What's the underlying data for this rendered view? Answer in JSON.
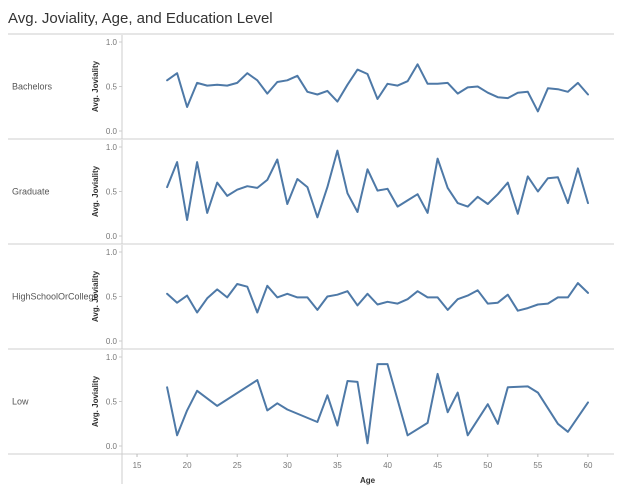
{
  "chart_data": {
    "type": "line",
    "title": "Avg. Joviality, Age, and Education Level",
    "xlabel": "Age",
    "ylabel": "Avg. Joviality",
    "xlim": [
      14,
      62
    ],
    "ylim": [
      0.0,
      1.0
    ],
    "x_ticks": [
      "15",
      "20",
      "25",
      "30",
      "35",
      "40",
      "45",
      "50",
      "55",
      "60"
    ],
    "y_ticks": [
      "0.0",
      "0.5",
      "1.0"
    ],
    "color": "#4e79a7",
    "rows": [
      {
        "name": "Bachelors",
        "x": [
          18,
          19,
          20,
          21,
          22,
          23,
          24,
          25,
          26,
          27,
          28,
          29,
          30,
          31,
          32,
          33,
          34,
          35,
          36,
          37,
          38,
          39,
          40,
          41,
          42,
          43,
          44,
          45,
          46,
          47,
          48,
          49,
          50,
          51,
          52,
          53,
          54,
          55,
          56,
          57,
          58,
          59,
          60
        ],
        "y": [
          0.57,
          0.65,
          0.27,
          0.54,
          0.51,
          0.52,
          0.51,
          0.54,
          0.65,
          0.57,
          0.42,
          0.55,
          0.57,
          0.62,
          0.44,
          0.41,
          0.45,
          0.33,
          0.52,
          0.69,
          0.64,
          0.36,
          0.53,
          0.51,
          0.56,
          0.75,
          0.53,
          0.53,
          0.54,
          0.42,
          0.49,
          0.5,
          0.43,
          0.38,
          0.37,
          0.43,
          0.44,
          0.22,
          0.48,
          0.47,
          0.44,
          0.54,
          0.41
        ]
      },
      {
        "name": "Graduate",
        "x": [
          18,
          19,
          20,
          21,
          22,
          23,
          24,
          25,
          26,
          27,
          28,
          29,
          30,
          31,
          32,
          33,
          34,
          35,
          36,
          37,
          38,
          39,
          40,
          41,
          42,
          43,
          44,
          45,
          46,
          47,
          48,
          49,
          50,
          51,
          52,
          53,
          54,
          55,
          56,
          57,
          58,
          59,
          60
        ],
        "y": [
          0.55,
          0.83,
          0.18,
          0.83,
          0.26,
          0.6,
          0.45,
          0.52,
          0.56,
          0.54,
          0.63,
          0.86,
          0.36,
          0.64,
          0.55,
          0.21,
          0.55,
          0.96,
          0.48,
          0.27,
          0.75,
          0.51,
          0.53,
          0.33,
          0.4,
          0.47,
          0.26,
          0.87,
          0.54,
          0.37,
          0.33,
          0.44,
          0.36,
          0.47,
          0.6,
          0.25,
          0.67,
          0.5,
          0.65,
          0.66,
          0.37,
          0.76,
          0.37
        ]
      },
      {
        "name": "HighSchoolOrCollege",
        "x": [
          18,
          19,
          20,
          21,
          22,
          23,
          24,
          25,
          26,
          27,
          28,
          29,
          30,
          31,
          32,
          33,
          34,
          35,
          36,
          37,
          38,
          39,
          40,
          41,
          42,
          43,
          44,
          45,
          46,
          47,
          48,
          49,
          50,
          51,
          52,
          53,
          54,
          55,
          56,
          57,
          58,
          59,
          60
        ],
        "y": [
          0.53,
          0.43,
          0.51,
          0.32,
          0.48,
          0.58,
          0.49,
          0.64,
          0.61,
          0.32,
          0.62,
          0.49,
          0.53,
          0.49,
          0.49,
          0.35,
          0.5,
          0.52,
          0.56,
          0.4,
          0.53,
          0.41,
          0.44,
          0.42,
          0.47,
          0.56,
          0.49,
          0.49,
          0.35,
          0.47,
          0.51,
          0.57,
          0.42,
          0.43,
          0.52,
          0.34,
          0.37,
          0.41,
          0.42,
          0.49,
          0.49,
          0.65,
          0.54
        ]
      },
      {
        "name": "Low",
        "x": [
          18,
          19,
          20,
          21,
          23,
          27,
          28,
          29,
          30,
          33,
          34,
          35,
          36,
          37,
          38,
          39,
          40,
          42,
          44,
          45,
          46,
          47,
          48,
          50,
          51,
          52,
          54,
          55,
          57,
          58,
          60
        ],
        "y": [
          0.66,
          0.12,
          0.4,
          0.62,
          0.45,
          0.74,
          0.4,
          0.48,
          0.41,
          0.27,
          0.57,
          0.23,
          0.73,
          0.72,
          0.03,
          0.92,
          0.92,
          0.12,
          0.26,
          0.81,
          0.38,
          0.6,
          0.12,
          0.47,
          0.25,
          0.66,
          0.67,
          0.6,
          0.25,
          0.16,
          0.49
        ]
      }
    ]
  }
}
